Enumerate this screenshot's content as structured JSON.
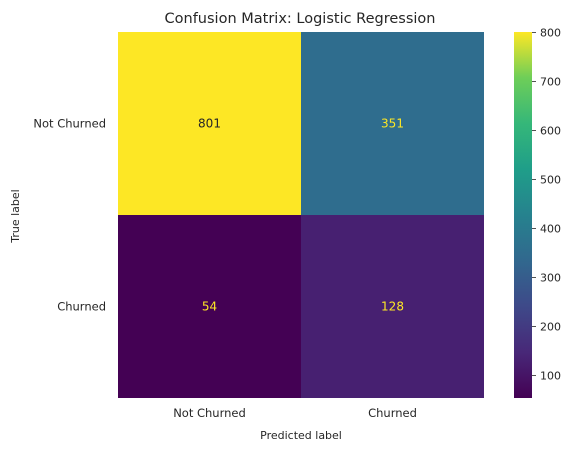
{
  "chart_data": {
    "type": "heatmap",
    "title": "Confusion Matrix: Logistic Regression",
    "xlabel": "Predicted label",
    "ylabel": "True label",
    "x_categories": [
      "Not Churned",
      "Churned"
    ],
    "y_categories": [
      "Not Churned",
      "Churned"
    ],
    "matrix": [
      [
        801,
        351
      ],
      [
        54,
        128
      ]
    ],
    "colormap": "viridis",
    "colorbar": {
      "min": 54,
      "max": 801,
      "ticks": [
        100,
        200,
        300,
        400,
        500,
        600,
        700,
        800
      ]
    },
    "grid": false
  }
}
